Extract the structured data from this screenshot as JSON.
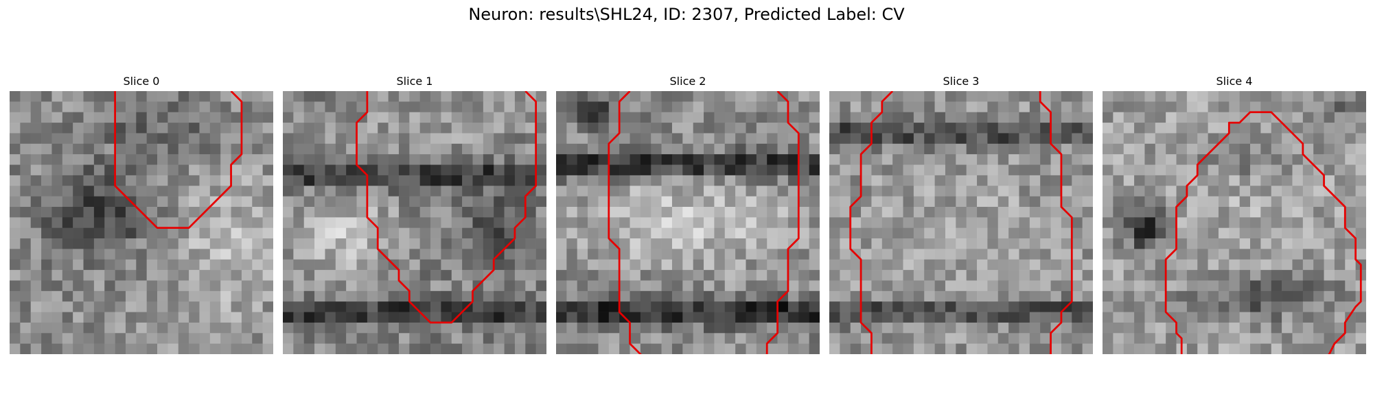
{
  "title": "Neuron: results\\SHL24, ID: 2307, Predicted Label: CV",
  "colormap": "gray",
  "contour_color": "#e60000",
  "slices": [
    {
      "title": "Slice 0",
      "contours": [
        [
          [
            9.5,
            -0.5
          ],
          [
            9.5,
            8.5
          ],
          [
            10.5,
            9.5
          ],
          [
            13.5,
            12.5
          ],
          [
            16.5,
            12.5
          ],
          [
            19.5,
            9.5
          ],
          [
            20.5,
            8.5
          ],
          [
            20.5,
            6.5
          ],
          [
            21.5,
            5.5
          ],
          [
            21.5,
            0.5
          ],
          [
            20.5,
            -0.5
          ]
        ]
      ]
    },
    {
      "title": "Slice 1",
      "contours": [
        [
          [
            7.5,
            -0.5
          ],
          [
            7.5,
            1.5
          ],
          [
            6.5,
            2.5
          ],
          [
            6.5,
            6.5
          ],
          [
            7.5,
            7.5
          ],
          [
            7.5,
            11.5
          ],
          [
            8.5,
            12.5
          ],
          [
            8.5,
            14.5
          ],
          [
            9.5,
            15.5
          ],
          [
            10.5,
            16.5
          ],
          [
            10.5,
            17.5
          ],
          [
            11.5,
            18.5
          ],
          [
            11.5,
            19.5
          ],
          [
            12.5,
            20.5
          ],
          [
            13.5,
            21.5
          ],
          [
            15.5,
            21.5
          ],
          [
            16.5,
            20.5
          ],
          [
            17.5,
            19.5
          ],
          [
            17.5,
            18.5
          ],
          [
            18.5,
            17.5
          ],
          [
            19.5,
            16.5
          ],
          [
            19.5,
            15.5
          ],
          [
            21.5,
            13.5
          ],
          [
            21.5,
            12.5
          ],
          [
            22.5,
            11.5
          ],
          [
            22.5,
            9.5
          ],
          [
            23.5,
            8.5
          ],
          [
            23.5,
            0.5
          ],
          [
            22.5,
            -0.5
          ]
        ]
      ]
    },
    {
      "title": "Slice 2",
      "contours": [
        [
          [
            6.5,
            -0.5
          ],
          [
            5.5,
            0.5
          ],
          [
            5.5,
            3.5
          ],
          [
            4.5,
            4.5
          ],
          [
            4.5,
            13.5
          ],
          [
            5.5,
            14.5
          ],
          [
            5.5,
            20.5
          ],
          [
            6.5,
            21.5
          ],
          [
            6.5,
            23.5
          ],
          [
            8.0,
            25.0
          ]
        ],
        [
          [
            20.5,
            -0.5
          ],
          [
            21.5,
            0.5
          ],
          [
            21.5,
            2.5
          ],
          [
            22.5,
            3.5
          ],
          [
            22.5,
            13.5
          ],
          [
            21.5,
            14.5
          ],
          [
            21.5,
            18.5
          ],
          [
            20.5,
            19.5
          ],
          [
            20.5,
            22.5
          ],
          [
            19.5,
            23.5
          ],
          [
            19.5,
            24.5
          ],
          [
            19.0,
            25.0
          ]
        ]
      ]
    },
    {
      "title": "Slice 3",
      "contours": [
        [
          [
            5.5,
            -0.5
          ],
          [
            4.5,
            0.5
          ],
          [
            4.5,
            1.5
          ],
          [
            3.5,
            2.5
          ],
          [
            3.5,
            4.5
          ],
          [
            2.5,
            5.5
          ],
          [
            2.5,
            9.5
          ],
          [
            1.5,
            10.5
          ],
          [
            1.5,
            14.5
          ],
          [
            2.5,
            15.5
          ],
          [
            2.5,
            21.5
          ],
          [
            3.5,
            22.5
          ],
          [
            3.5,
            25.0
          ]
        ],
        [
          [
            19.5,
            -0.5
          ],
          [
            19.5,
            0.5
          ],
          [
            20.5,
            1.5
          ],
          [
            20.5,
            4.5
          ],
          [
            21.5,
            5.5
          ],
          [
            21.5,
            10.5
          ],
          [
            22.5,
            11.5
          ],
          [
            22.5,
            19.5
          ],
          [
            21.5,
            20.5
          ],
          [
            21.5,
            21.5
          ],
          [
            20.5,
            22.5
          ],
          [
            20.5,
            24.5
          ],
          [
            20.0,
            25.0
          ]
        ]
      ]
    },
    {
      "title": "Slice 4",
      "contours": [
        [
          [
            7.0,
            25.0
          ],
          [
            7.0,
            23.0
          ],
          [
            6.5,
            22.5
          ],
          [
            6.5,
            21.5
          ],
          [
            5.5,
            20.5
          ],
          [
            5.5,
            15.5
          ],
          [
            6.5,
            14.5
          ],
          [
            6.5,
            10.5
          ],
          [
            7.5,
            9.5
          ],
          [
            7.5,
            8.5
          ],
          [
            8.5,
            7.5
          ],
          [
            8.5,
            6.5
          ],
          [
            9.5,
            5.5
          ],
          [
            11.5,
            3.5
          ],
          [
            11.5,
            2.5
          ],
          [
            12.5,
            2.5
          ],
          [
            13.5,
            1.5
          ],
          [
            14.5,
            1.5
          ],
          [
            15.5,
            1.5
          ],
          [
            16.5,
            2.5
          ],
          [
            17.5,
            3.5
          ],
          [
            18.5,
            4.5
          ],
          [
            18.5,
            5.5
          ],
          [
            19.5,
            6.5
          ],
          [
            20.5,
            7.5
          ],
          [
            20.5,
            8.5
          ],
          [
            21.5,
            9.5
          ],
          [
            22.5,
            10.5
          ],
          [
            22.5,
            12.5
          ],
          [
            23.5,
            13.5
          ],
          [
            23.5,
            15.5
          ],
          [
            24.0,
            16.0
          ],
          [
            24.0,
            19.5
          ],
          [
            23.5,
            20.0
          ],
          [
            22.5,
            21.5
          ],
          [
            22.5,
            22.5
          ],
          [
            21.5,
            23.5
          ],
          [
            21.0,
            24.5
          ],
          [
            20.5,
            25.0
          ]
        ]
      ]
    }
  ]
}
